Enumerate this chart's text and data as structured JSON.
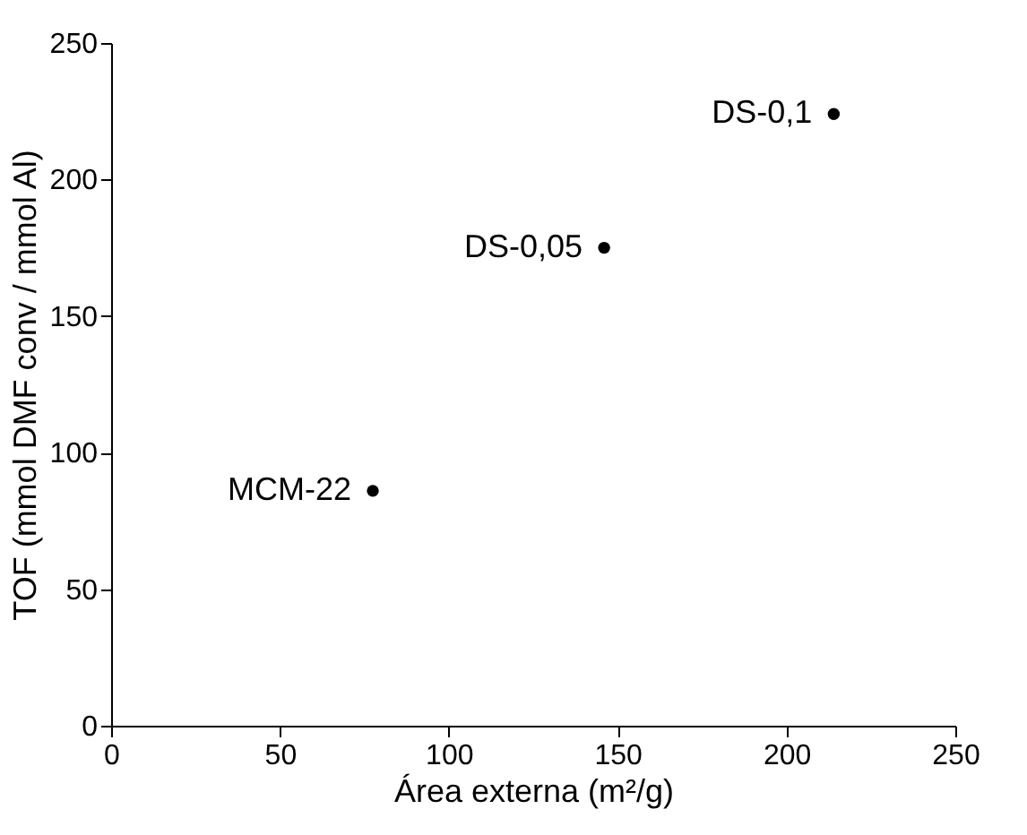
{
  "chart_data": {
    "type": "scatter",
    "xlabel": "Área externa (m²/g)",
    "ylabel": "TOF (mmol DMF conv / mmol Al)",
    "x": [
      77.5,
      146,
      214
    ],
    "series": [
      {
        "color": "#000000",
        "values": [
          86,
          175,
          224
        ]
      }
    ],
    "annotations": [
      {
        "text": "MCM-22",
        "x": 77.5,
        "y": 86
      },
      {
        "text": "DS-0,05",
        "x": 146,
        "y": 175
      },
      {
        "text": "DS-0,1",
        "x": 214,
        "y": 224
      }
    ],
    "xlim": [
      0,
      250
    ],
    "ylim": [
      0,
      250
    ],
    "xticks": [
      0,
      50,
      100,
      150,
      200,
      250
    ],
    "yticks": [
      0,
      50,
      100,
      150,
      200,
      250
    ],
    "marker": "circle",
    "grid": false
  }
}
